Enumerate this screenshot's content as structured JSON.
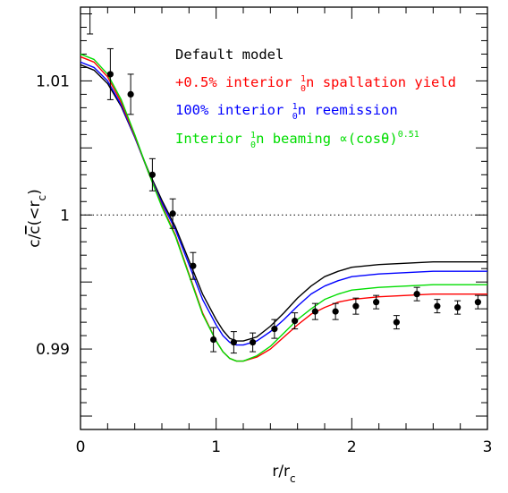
{
  "chart_data": {
    "type": "line",
    "xlabel": "r/r_c",
    "ylabel": "c/c̄(<r_c)",
    "xlim": [
      0,
      3
    ],
    "ylim": [
      0.984,
      1.0155
    ],
    "x_ticks": [
      "0",
      "1",
      "2",
      "3"
    ],
    "y_ticks": [
      "0.99",
      "1",
      "1.01"
    ],
    "reference_line": {
      "y": 1.0,
      "style": "dotted"
    },
    "grid": false,
    "legend_placement": "top-right",
    "legend": [
      {
        "text": "Default model",
        "color": "#000000"
      },
      {
        "text": "+0.5% interior ₀¹n spallation yield",
        "color": "#ff0000"
      },
      {
        "text": "100% interior ₀¹n reemission",
        "color": "#0000ff"
      },
      {
        "text": "Interior ₀¹n beaming ∝(cosθ)^0.51",
        "color": "#00dd00"
      }
    ],
    "series": [
      {
        "color": "#000000",
        "x": [
          0,
          0.1,
          0.2,
          0.3,
          0.4,
          0.5,
          0.6,
          0.7,
          0.8,
          0.9,
          1.0,
          1.05,
          1.1,
          1.15,
          1.2,
          1.3,
          1.4,
          1.5,
          1.6,
          1.7,
          1.8,
          1.9,
          2.0,
          2.2,
          2.4,
          2.6,
          2.8,
          3.0
        ],
        "y": [
          1.0112,
          1.0108,
          1.0098,
          1.0081,
          1.0058,
          1.0033,
          1.0011,
          0.9991,
          0.9966,
          0.9941,
          0.9922,
          0.9914,
          0.9908,
          0.9906,
          0.9906,
          0.9909,
          0.9917,
          0.9927,
          0.9938,
          0.9947,
          0.9954,
          0.9958,
          0.9961,
          0.9963,
          0.9964,
          0.9965,
          0.9965,
          0.9965
        ]
      },
      {
        "color": "#0000ff",
        "x": [
          0,
          0.1,
          0.2,
          0.3,
          0.4,
          0.5,
          0.6,
          0.7,
          0.8,
          0.9,
          1.0,
          1.05,
          1.1,
          1.15,
          1.2,
          1.3,
          1.4,
          1.5,
          1.6,
          1.7,
          1.8,
          1.9,
          2.0,
          2.2,
          2.4,
          2.6,
          2.8,
          3.0
        ],
        "y": [
          1.0114,
          1.011,
          1.01,
          1.0082,
          1.0058,
          1.0032,
          1.0009,
          0.9989,
          0.9963,
          0.9937,
          0.9918,
          0.991,
          0.9905,
          0.9903,
          0.9903,
          0.9906,
          0.9913,
          0.9922,
          0.9932,
          0.9941,
          0.9947,
          0.9951,
          0.9954,
          0.9956,
          0.9957,
          0.9958,
          0.9958,
          0.9958
        ]
      },
      {
        "color": "#ff0000",
        "x": [
          0,
          0.1,
          0.2,
          0.3,
          0.4,
          0.5,
          0.6,
          0.7,
          0.8,
          0.9,
          1.0,
          1.05,
          1.1,
          1.15,
          1.2,
          1.3,
          1.4,
          1.5,
          1.6,
          1.7,
          1.8,
          1.9,
          2.0,
          2.2,
          2.4,
          2.6,
          2.8,
          3.0
        ],
        "y": [
          1.0118,
          1.0114,
          1.0103,
          1.0084,
          1.0059,
          1.0032,
          1.0007,
          0.9985,
          0.9956,
          0.9927,
          0.9906,
          0.9898,
          0.9893,
          0.9891,
          0.9891,
          0.9894,
          0.99,
          0.9909,
          0.9918,
          0.9926,
          0.9931,
          0.9935,
          0.9937,
          0.9939,
          0.994,
          0.9941,
          0.9941,
          0.9941
        ]
      },
      {
        "color": "#00dd00",
        "x": [
          0,
          0.1,
          0.2,
          0.3,
          0.4,
          0.5,
          0.6,
          0.7,
          0.8,
          0.9,
          1.0,
          1.05,
          1.1,
          1.15,
          1.2,
          1.3,
          1.4,
          1.5,
          1.6,
          1.7,
          1.8,
          1.9,
          2.0,
          2.2,
          2.4,
          2.6,
          2.8,
          3.0
        ],
        "y": [
          1.012,
          1.0116,
          1.0105,
          1.0086,
          1.006,
          1.0032,
          1.0006,
          0.9984,
          0.9955,
          0.9926,
          0.9906,
          0.9898,
          0.9893,
          0.9891,
          0.9891,
          0.9895,
          0.9902,
          0.9912,
          0.9922,
          0.993,
          0.9937,
          0.9941,
          0.9944,
          0.9946,
          0.9947,
          0.9948,
          0.9948,
          0.9948
        ]
      }
    ],
    "data_points": {
      "x": [
        0.22,
        0.37,
        0.53,
        0.68,
        0.83,
        0.98,
        1.13,
        1.27,
        1.43,
        1.58,
        1.73,
        1.88,
        2.03,
        2.18,
        2.33,
        2.48,
        2.63,
        2.78,
        2.93
      ],
      "y": [
        1.0105,
        1.009,
        1.003,
        1.0001,
        0.9962,
        0.9907,
        0.9905,
        0.9905,
        0.9915,
        0.9921,
        0.9928,
        0.9928,
        0.9932,
        0.9935,
        0.992,
        0.9941,
        0.9932,
        0.9931,
        0.9935
      ],
      "yerr": [
        0.0019,
        0.0015,
        0.0012,
        0.0011,
        0.001,
        0.0009,
        0.0008,
        0.0007,
        0.0007,
        0.0006,
        0.0006,
        0.0006,
        0.0006,
        0.0005,
        0.0005,
        0.0005,
        0.0005,
        0.0005,
        0.0005
      ]
    },
    "offscale_point": {
      "x": 0.07,
      "yerr_top": 1.0155,
      "yerr_bottom": 1.0135
    }
  }
}
